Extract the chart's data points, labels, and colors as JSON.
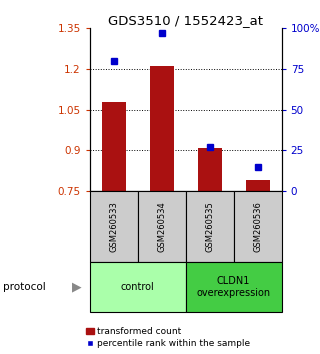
{
  "title": "GDS3510 / 1552423_at",
  "samples": [
    "GSM260533",
    "GSM260534",
    "GSM260535",
    "GSM260536"
  ],
  "bar_values": [
    1.08,
    1.21,
    0.91,
    0.79
  ],
  "percentile_values": [
    80,
    97,
    27,
    15
  ],
  "bar_color": "#aa1111",
  "marker_color": "#0000cc",
  "ylim_left": [
    0.75,
    1.35
  ],
  "ylim_right": [
    0,
    100
  ],
  "yticks_left": [
    0.75,
    0.9,
    1.05,
    1.2,
    1.35
  ],
  "yticks_right": [
    0,
    25,
    50,
    75,
    100
  ],
  "ytick_labels_right": [
    "0",
    "25",
    "50",
    "75",
    "100%"
  ],
  "dotted_lines": [
    0.9,
    1.05,
    1.2
  ],
  "groups": [
    {
      "label": "control",
      "samples": [
        0,
        1
      ],
      "color": "#aaffaa"
    },
    {
      "label": "CLDN1\noverexpression",
      "samples": [
        2,
        3
      ],
      "color": "#44cc44"
    }
  ],
  "protocol_label": "protocol",
  "legend_bar_label": "transformed count",
  "legend_marker_label": "percentile rank within the sample",
  "background_color": "#ffffff",
  "bar_width": 0.5
}
